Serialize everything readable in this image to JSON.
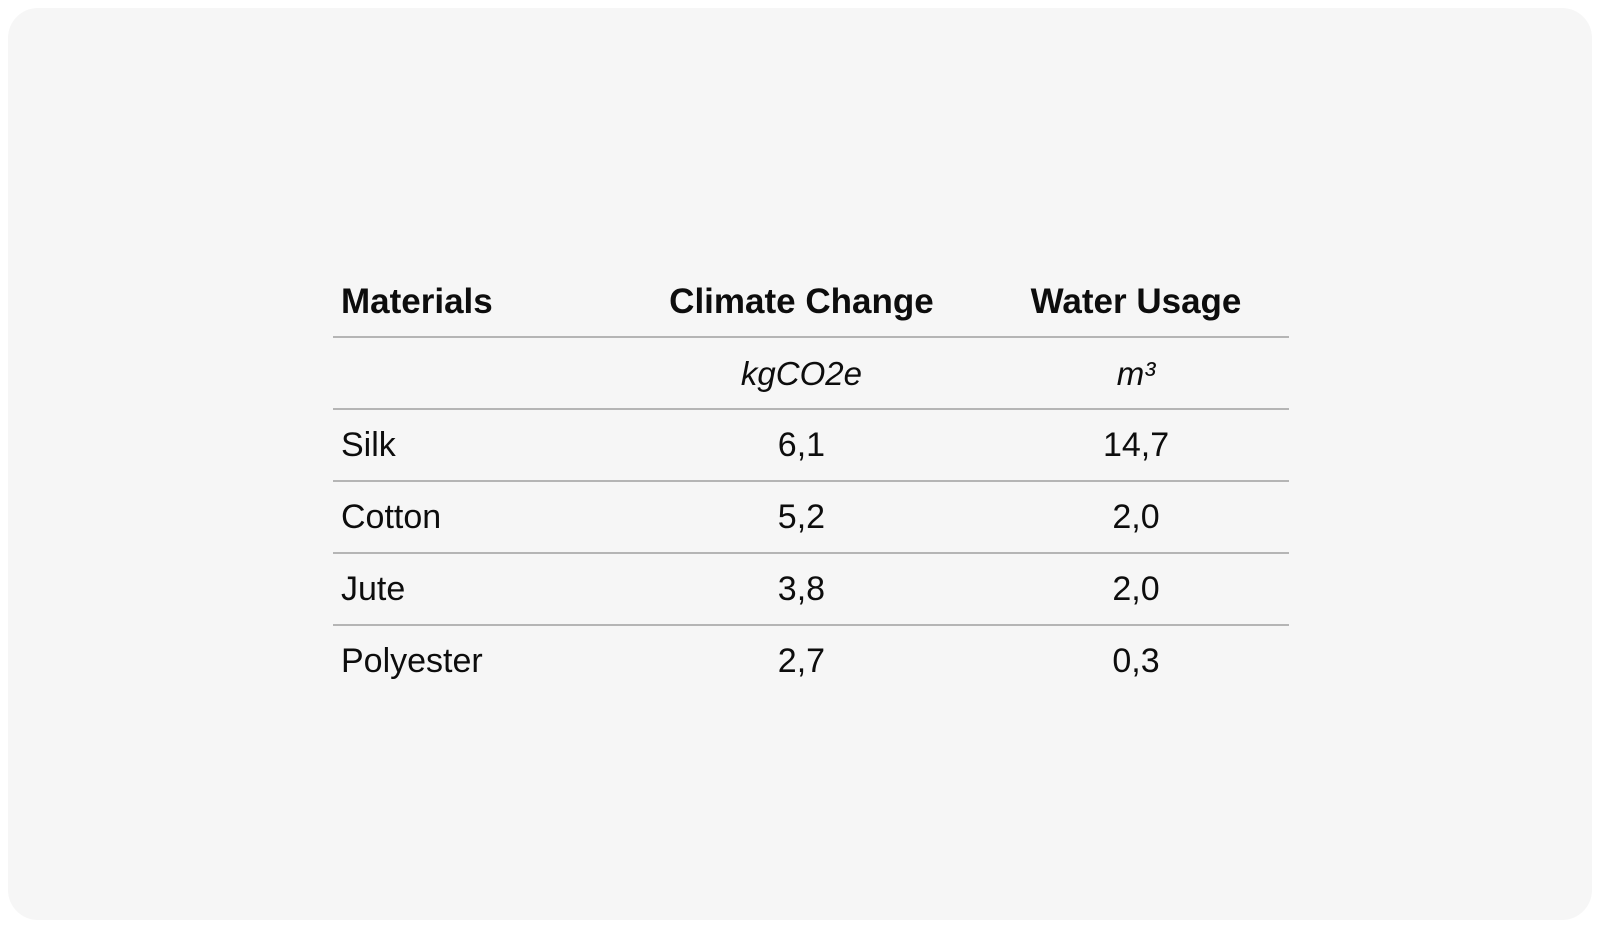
{
  "colors": {
    "page_bg": "#ffffff",
    "card_bg": "#f6f6f6",
    "text": "#0d0d0d",
    "divider": "#b5b5b5"
  },
  "table": {
    "columns": [
      "Materials",
      "Climate Change",
      "Water Usage"
    ],
    "units": [
      "",
      "kgCO2e",
      "m³"
    ],
    "rows": [
      [
        "Silk",
        "6,1",
        "14,7"
      ],
      [
        "Cotton",
        "5,2",
        "2,0"
      ],
      [
        "Jute",
        "3,8",
        "2,0"
      ],
      [
        "Polyester",
        "2,7",
        "0,3"
      ]
    ]
  },
  "chart_data": {
    "type": "table",
    "title": "",
    "columns": [
      "Materials",
      "Climate Change (kgCO2e)",
      "Water Usage (m³)"
    ],
    "categories": [
      "Silk",
      "Cotton",
      "Jute",
      "Polyester"
    ],
    "series": [
      {
        "name": "Climate Change (kgCO2e)",
        "values": [
          6.1,
          5.2,
          3.8,
          2.7
        ]
      },
      {
        "name": "Water Usage (m³)",
        "values": [
          14.7,
          2.0,
          2.0,
          0.3
        ]
      }
    ],
    "decimal_separator": ",",
    "layout": {
      "grid": "horizontal-rules-only",
      "header_bold": true,
      "units_row_italic": true
    }
  }
}
